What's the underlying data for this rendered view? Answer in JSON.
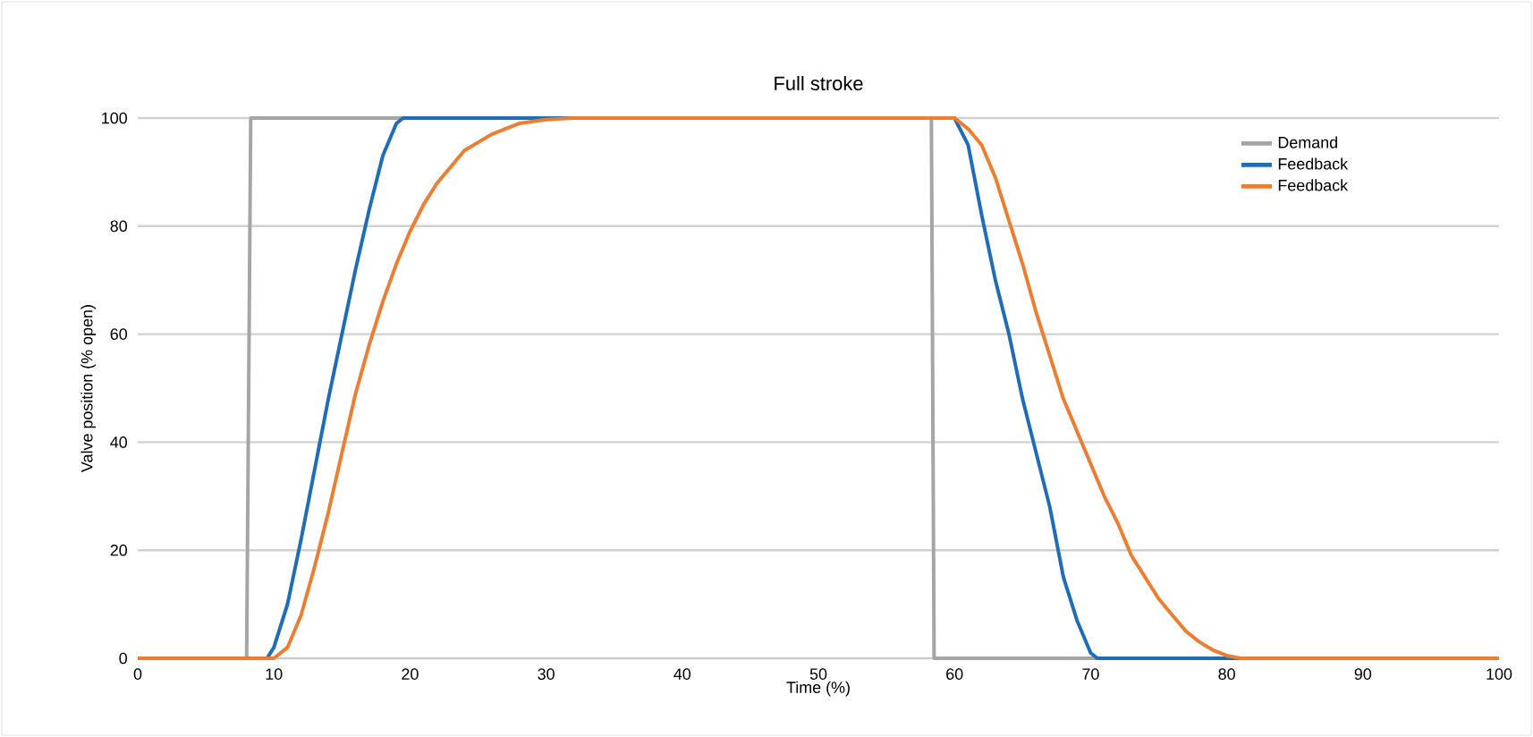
{
  "chart_data": {
    "type": "line",
    "title": "Full stroke",
    "xlabel": "Time (%)",
    "ylabel": "Valve position (% open)",
    "xlim": [
      0,
      100
    ],
    "ylim": [
      0,
      100
    ],
    "xticks": [
      0,
      10,
      20,
      30,
      40,
      50,
      60,
      70,
      80,
      90,
      100
    ],
    "yticks": [
      0,
      20,
      40,
      60,
      80,
      100
    ],
    "grid": "y",
    "legend": "top right",
    "marker": "none",
    "line_style": "solid",
    "series": [
      {
        "name": "Demand",
        "color": "#a5a5a5",
        "x": [
          0,
          8,
          8.3,
          58.3,
          58.5,
          100
        ],
        "values": [
          0,
          0,
          100,
          100,
          0,
          0
        ]
      },
      {
        "name": "Feedback",
        "color": "#1f6db8",
        "x": [
          0,
          9.5,
          10,
          11,
          12,
          13,
          14,
          15,
          16,
          17,
          18,
          19,
          19.5,
          20,
          60,
          61,
          62,
          63,
          64,
          65,
          66,
          67,
          68,
          69,
          70,
          70.5,
          100
        ],
        "values": [
          0,
          0,
          2,
          10,
          22,
          35,
          48,
          60,
          72,
          83,
          93,
          99,
          100,
          100,
          100,
          95,
          82,
          70,
          60,
          48,
          38,
          28,
          15,
          7,
          1,
          0,
          0
        ]
      },
      {
        "name": "Feedback",
        "color": "#ed7d31",
        "x": [
          0,
          10,
          11,
          12,
          13,
          14,
          15,
          16,
          17,
          18,
          19,
          20,
          21,
          22,
          24,
          26,
          28,
          30,
          32,
          60,
          61,
          62,
          63,
          64,
          65,
          66,
          67,
          68,
          69,
          70,
          71,
          72,
          73,
          74,
          75,
          76,
          77,
          78,
          79,
          80,
          81,
          100
        ],
        "values": [
          0,
          0,
          2,
          8,
          17,
          27,
          38,
          49,
          58,
          66,
          73,
          79,
          84,
          88,
          94,
          97,
          99,
          99.7,
          100,
          100,
          98,
          95,
          89,
          81,
          73,
          64,
          56,
          48,
          42,
          36,
          30,
          25,
          19,
          15,
          11,
          8,
          5,
          3,
          1.5,
          0.5,
          0,
          0
        ]
      }
    ]
  }
}
